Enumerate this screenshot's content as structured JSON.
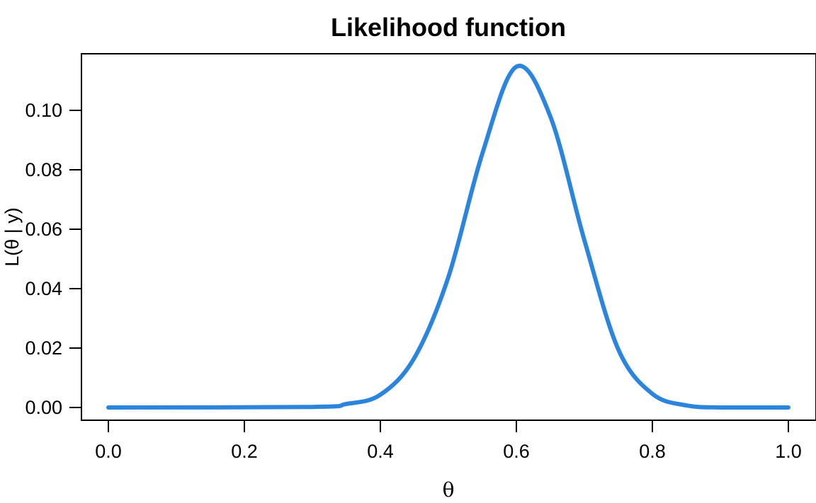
{
  "chart_data": {
    "type": "line",
    "title": "Likelihood function",
    "xlabel": "θ",
    "ylabel": "L(θ | y)",
    "xlim": [
      0,
      1
    ],
    "ylim": [
      0,
      0.115
    ],
    "x_ticks": [
      "0.0",
      "0.2",
      "0.4",
      "0.6",
      "0.8",
      "1.0"
    ],
    "y_ticks": [
      "0.00",
      "0.02",
      "0.04",
      "0.06",
      "0.08",
      "0.10"
    ],
    "grid": false,
    "line_color": "#2B85DD",
    "series": [
      {
        "x": [
          0.0,
          0.3,
          0.35,
          0.4,
          0.45,
          0.5,
          0.55,
          0.6,
          0.65,
          0.7,
          0.75,
          0.8,
          0.85,
          0.9,
          1.0
        ],
        "y": [
          0.0,
          0.0002,
          0.0012,
          0.0043,
          0.0167,
          0.0439,
          0.0855,
          0.1147,
          0.0979,
          0.0563,
          0.0195,
          0.0046,
          0.0007,
          0.0,
          0.0
        ]
      }
    ]
  }
}
